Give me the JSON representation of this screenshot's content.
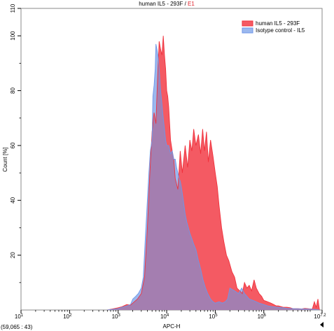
{
  "chart_data": {
    "type": "area",
    "title_main": "human IL5 - 293F",
    "title_sep": " / ",
    "title_gate": "E1",
    "xlabel": "APC-H",
    "ylabel": "Count [%]",
    "x_scale": "log",
    "xlim": [
      10,
      15848932
    ],
    "ylim": [
      0,
      110
    ],
    "x_ticks": [
      {
        "base": "10",
        "exp": "1",
        "value": 10
      },
      {
        "base": "10",
        "exp": "2",
        "value": 100
      },
      {
        "base": "10",
        "exp": "3",
        "value": 1000
      },
      {
        "base": "10",
        "exp": "4",
        "value": 10000
      },
      {
        "base": "10",
        "exp": "5",
        "value": 100000
      },
      {
        "base": "10",
        "exp": "6",
        "value": 1000000
      },
      {
        "base": "10",
        "exp": "7.2",
        "value": 15848932
      }
    ],
    "y_ticks": [
      {
        "label": "20",
        "value": 20
      },
      {
        "label": "40",
        "value": 40
      },
      {
        "label": "60",
        "value": 60
      },
      {
        "label": "80",
        "value": 80
      },
      {
        "label": "100",
        "value": 100
      },
      {
        "label": "110",
        "value": 110
      }
    ],
    "legend_position": "top-right",
    "series": [
      {
        "name": "human IL5 - 293F",
        "color": "#f0313c",
        "fill": "#f45a63",
        "x": [
          600,
          1000,
          1200,
          1500,
          1800,
          2000,
          2500,
          3000,
          3500,
          4000,
          4500,
          5000,
          5500,
          6000,
          6500,
          7000,
          7500,
          8000,
          8500,
          9000,
          9500,
          10000,
          10500,
          11000,
          12000,
          13000,
          14000,
          15000,
          17000,
          19000,
          21000,
          24000,
          27000,
          30000,
          33000,
          36000,
          40000,
          45000,
          50000,
          55000,
          60000,
          66000,
          72000,
          80000,
          90000,
          100000,
          110000,
          120000,
          135000,
          150000,
          170000,
          190000,
          220000,
          250000,
          280000,
          320000,
          360000,
          400000,
          450000,
          500000,
          560000,
          630000,
          700000,
          800000,
          900000,
          1000000,
          1200000,
          1400000,
          1600000,
          1800000,
          2000000,
          2500000,
          3000000,
          3500000,
          4000000,
          5000000,
          6000000,
          7000000,
          8000000,
          9000000,
          10000000,
          11000000,
          12000000,
          13000000,
          14000000
        ],
        "y": [
          0,
          0.8,
          1.2,
          2,
          1.8,
          2.5,
          4,
          6,
          12,
          30,
          50,
          65,
          72,
          68,
          85,
          98,
          95,
          93,
          100,
          93,
          88,
          80,
          78,
          74,
          62,
          58,
          55,
          48,
          44,
          58,
          50,
          60,
          52,
          62,
          58,
          66,
          60,
          64,
          57,
          66,
          58,
          65,
          54,
          62,
          56,
          50,
          45,
          38,
          30,
          25,
          20,
          18,
          14,
          12,
          8,
          7,
          6,
          10,
          8,
          9,
          7,
          11,
          8,
          6,
          5,
          3.5,
          3,
          2.5,
          2,
          1.5,
          1.5,
          1,
          1,
          0.8,
          0.5,
          0.5,
          0.4,
          0.6,
          0.5,
          0.4,
          0.4,
          3,
          1,
          4,
          0
        ]
      },
      {
        "name": "Isotype control - IL5",
        "color": "#6f96e8",
        "fill": "#9bb8ee",
        "x": [
          600,
          1000,
          1200,
          1500,
          1800,
          2000,
          2300,
          2600,
          3000,
          3300,
          3600,
          4000,
          4300,
          4600,
          5000,
          5200,
          5500,
          5800,
          6000,
          6300,
          6600,
          7000,
          7500,
          8000,
          8500,
          9000,
          9500,
          10000,
          11000,
          12000,
          13000,
          14000,
          15000,
          16000,
          17000,
          18000,
          19000,
          20000,
          22000,
          24000,
          26000,
          28000,
          30000,
          33000,
          36000,
          40000,
          45000,
          50000,
          56000,
          63000,
          70000,
          80000,
          90000,
          100000,
          120000,
          140000,
          160000,
          180000,
          200000,
          250000,
          300000,
          350000,
          400000,
          450000,
          500000,
          600000,
          700000,
          800000,
          1000000,
          1200000,
          1500000,
          2000000,
          2500000,
          3000000,
          4000000,
          6000000,
          10000000,
          14000000
        ],
        "y": [
          0,
          0.5,
          1,
          1.5,
          2,
          4,
          5,
          6,
          8,
          12,
          25,
          40,
          50,
          58,
          62,
          78,
          82,
          88,
          97,
          95,
          93,
          88,
          80,
          75,
          70,
          66,
          62,
          60,
          60,
          57,
          58,
          55,
          55,
          52,
          50,
          48,
          47,
          45,
          40,
          35,
          32,
          30,
          28,
          26,
          24,
          22,
          18,
          15,
          11,
          8,
          6,
          4,
          3,
          2.5,
          3,
          2.5,
          3,
          4,
          8,
          7,
          6,
          8,
          6,
          5,
          4,
          3.5,
          3,
          2.5,
          2,
          1.5,
          1.2,
          1,
          0.8,
          0.6,
          0.5,
          0.4,
          0.3,
          0
        ]
      }
    ],
    "overlap_fill": "#a47eb0"
  },
  "footer": {
    "cursor_coords": "(59,065 : 43)"
  }
}
